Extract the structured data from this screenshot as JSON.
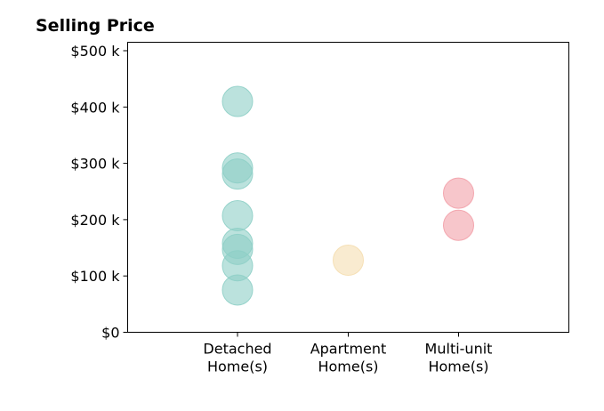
{
  "chart_data": {
    "type": "scatter",
    "title": "Selling Price",
    "xlabel": "",
    "ylabel": "",
    "categories": [
      [
        "Detached",
        "Home(s)"
      ],
      [
        "Apartment",
        "Home(s)"
      ],
      [
        "Multi-unit",
        "Home(s)"
      ]
    ],
    "ylim": [
      0,
      515000
    ],
    "yticks": [
      0,
      100000,
      200000,
      300000,
      400000,
      500000
    ],
    "ytick_labels": [
      "$0",
      "$100 k",
      "$200 k",
      "$300 k",
      "$400 k",
      "$500 k"
    ],
    "grid": false,
    "series": [
      {
        "category_index": 0,
        "color": "#8ecfc6",
        "values": [
          410000,
          292000,
          281000,
          207000,
          158000,
          147000,
          118000,
          75000
        ]
      },
      {
        "category_index": 1,
        "color": "#f5deb0",
        "values": [
          128000
        ]
      },
      {
        "category_index": 2,
        "color": "#f2a0a8",
        "values": [
          247000,
          190000
        ]
      }
    ]
  }
}
